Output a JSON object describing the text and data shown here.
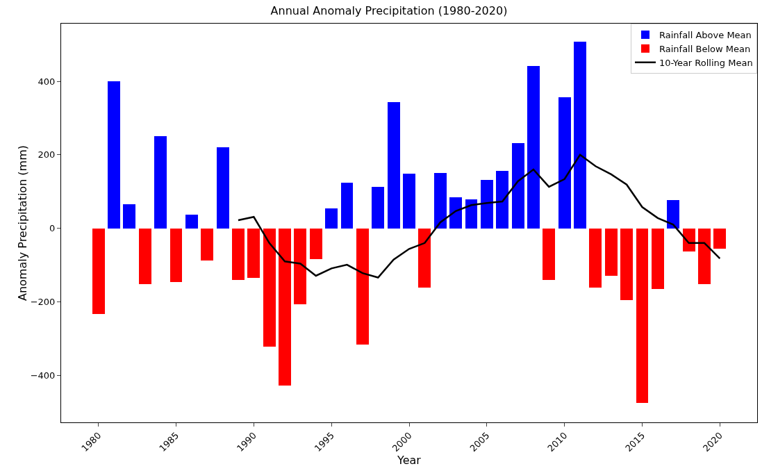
{
  "chart_data": {
    "type": "bar",
    "title": "Annual Anomaly Precipitation (1980-2020)",
    "xlabel": "Year",
    "ylabel": "Anomaly Precipitation (mm)",
    "x": [
      1980,
      1981,
      1982,
      1983,
      1984,
      1985,
      1986,
      1987,
      1988,
      1989,
      1990,
      1991,
      1992,
      1993,
      1994,
      1995,
      1996,
      1997,
      1998,
      1999,
      2000,
      2001,
      2002,
      2003,
      2004,
      2005,
      2006,
      2007,
      2008,
      2009,
      2010,
      2011,
      2012,
      2013,
      2014,
      2015,
      2016,
      2017,
      2018,
      2019,
      2020
    ],
    "series": [
      {
        "name": "Rainfall Above Mean",
        "color": "#0000ff",
        "values": [
          null,
          400,
          65,
          null,
          251,
          null,
          37,
          null,
          220,
          null,
          null,
          null,
          null,
          null,
          null,
          55,
          124,
          null,
          113,
          343,
          149,
          null,
          151,
          84,
          78,
          132,
          157,
          231,
          441,
          null,
          357,
          508,
          null,
          null,
          null,
          null,
          null,
          77,
          null,
          null,
          null
        ]
      },
      {
        "name": "Rainfall Below Mean",
        "color": "#ff0000",
        "values": [
          -234,
          null,
          null,
          -151,
          null,
          -147,
          null,
          -88,
          null,
          -140,
          -135,
          -322,
          -428,
          -206,
          -83,
          null,
          null,
          -316,
          null,
          null,
          null,
          -162,
          null,
          null,
          null,
          null,
          null,
          null,
          null,
          -140,
          null,
          null,
          -162,
          -129,
          -196,
          -476,
          -166,
          null,
          -63,
          -152,
          -56
        ]
      },
      {
        "name": "10-Year Rolling Mean",
        "type": "line",
        "color": "#000000",
        "x": [
          1989,
          1990,
          1991,
          1992,
          1993,
          1994,
          1995,
          1996,
          1997,
          1998,
          1999,
          2000,
          2001,
          2002,
          2003,
          2004,
          2005,
          2006,
          2007,
          2008,
          2009,
          2010,
          2011,
          2012,
          2013,
          2014,
          2015,
          2016,
          2017,
          2018,
          2019,
          2020
        ],
        "values": [
          22,
          31,
          -40,
          -90,
          -96,
          -129,
          -109,
          -99,
          -122,
          -134,
          -85,
          -56,
          -40,
          16,
          47,
          63,
          69,
          73,
          128,
          160,
          113,
          134,
          200,
          169,
          147,
          119,
          58,
          28,
          10,
          -40,
          -40,
          -82
        ]
      }
    ],
    "xlim": [
      1977.6,
      2022.4
    ],
    "xticks": [
      1980,
      1985,
      1990,
      1995,
      2000,
      2005,
      2010,
      2015,
      2020
    ],
    "ylim": [
      -528,
      557
    ],
    "yticks": [
      -400,
      -200,
      0,
      200,
      400
    ],
    "grid": false,
    "legend": "top right",
    "marker": "none",
    "line_style": "solid"
  }
}
